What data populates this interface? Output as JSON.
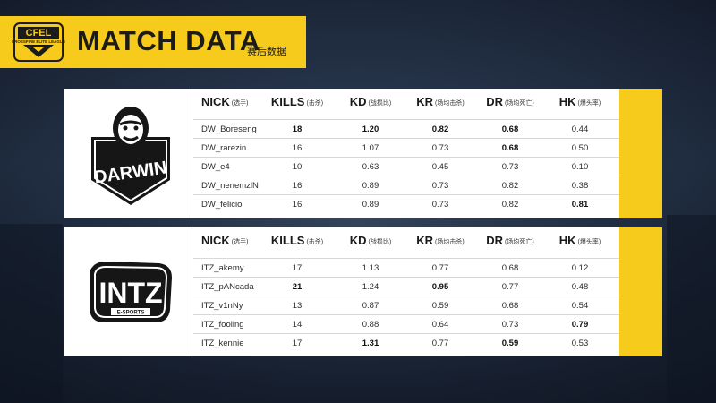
{
  "header": {
    "title": "MATCH DATA",
    "subtitle": "赛后数据",
    "logo": {
      "name": "CFEL",
      "tagline": "CROSSFIRE ELITE LEAGUE",
      "icon": "cfel-logo"
    }
  },
  "columns": [
    {
      "label": "NICK",
      "sub": "(选手)"
    },
    {
      "label": "KILLS",
      "sub": "(击杀)"
    },
    {
      "label": "KD",
      "sub": "(战损比)"
    },
    {
      "label": "KR",
      "sub": "(场均击杀)"
    },
    {
      "label": "DR",
      "sub": "(场均死亡)"
    },
    {
      "label": "HK",
      "sub": "(爆头率)"
    }
  ],
  "teams": [
    {
      "name": "DARWIN",
      "logo_icon": "darwin-gorilla-logo",
      "players": [
        {
          "nick": "DW_Boreseng",
          "kills": "18",
          "kd": "1.20",
          "kr": "0.82",
          "dr": "0.68",
          "hk": "0.44",
          "bold": [
            true,
            true,
            true,
            true,
            false
          ]
        },
        {
          "nick": "DW_rarezin",
          "kills": "16",
          "kd": "1.07",
          "kr": "0.73",
          "dr": "0.68",
          "hk": "0.50",
          "bold": [
            false,
            false,
            false,
            true,
            false
          ]
        },
        {
          "nick": "DW_e4",
          "kills": "10",
          "kd": "0.63",
          "kr": "0.45",
          "dr": "0.73",
          "hk": "0.10",
          "bold": [
            false,
            false,
            false,
            false,
            false
          ]
        },
        {
          "nick": "DW_nenemzlN",
          "kills": "16",
          "kd": "0.89",
          "kr": "0.73",
          "dr": "0.82",
          "hk": "0.38",
          "bold": [
            false,
            false,
            false,
            false,
            false
          ]
        },
        {
          "nick": "DW_felicio",
          "kills": "16",
          "kd": "0.89",
          "kr": "0.73",
          "dr": "0.82",
          "hk": "0.81",
          "bold": [
            false,
            false,
            false,
            false,
            true
          ]
        }
      ]
    },
    {
      "name": "INTZ",
      "logo_icon": "intz-esports-logo",
      "logo_tagline": "E-SPORTS",
      "players": [
        {
          "nick": "ITZ_akemy",
          "kills": "17",
          "kd": "1.13",
          "kr": "0.77",
          "dr": "0.68",
          "hk": "0.12",
          "bold": [
            false,
            false,
            false,
            false,
            false
          ]
        },
        {
          "nick": "ITZ_pANcada",
          "kills": "21",
          "kd": "1.24",
          "kr": "0.95",
          "dr": "0.77",
          "hk": "0.48",
          "bold": [
            true,
            false,
            true,
            false,
            false
          ]
        },
        {
          "nick": "ITZ_v1nNy",
          "kills": "13",
          "kd": "0.87",
          "kr": "0.59",
          "dr": "0.68",
          "hk": "0.54",
          "bold": [
            false,
            false,
            false,
            false,
            false
          ]
        },
        {
          "nick": "ITZ_fooling",
          "kills": "14",
          "kd": "0.88",
          "kr": "0.64",
          "dr": "0.73",
          "hk": "0.79",
          "bold": [
            false,
            false,
            false,
            false,
            true
          ]
        },
        {
          "nick": "ITZ_kennie",
          "kills": "17",
          "kd": "1.31",
          "kr": "0.77",
          "dr": "0.59",
          "hk": "0.53",
          "bold": [
            false,
            true,
            false,
            true,
            false
          ]
        }
      ]
    }
  ],
  "colors": {
    "accent": "#f7cb1b",
    "panel": "#ffffff",
    "text": "#1a1a1a"
  }
}
